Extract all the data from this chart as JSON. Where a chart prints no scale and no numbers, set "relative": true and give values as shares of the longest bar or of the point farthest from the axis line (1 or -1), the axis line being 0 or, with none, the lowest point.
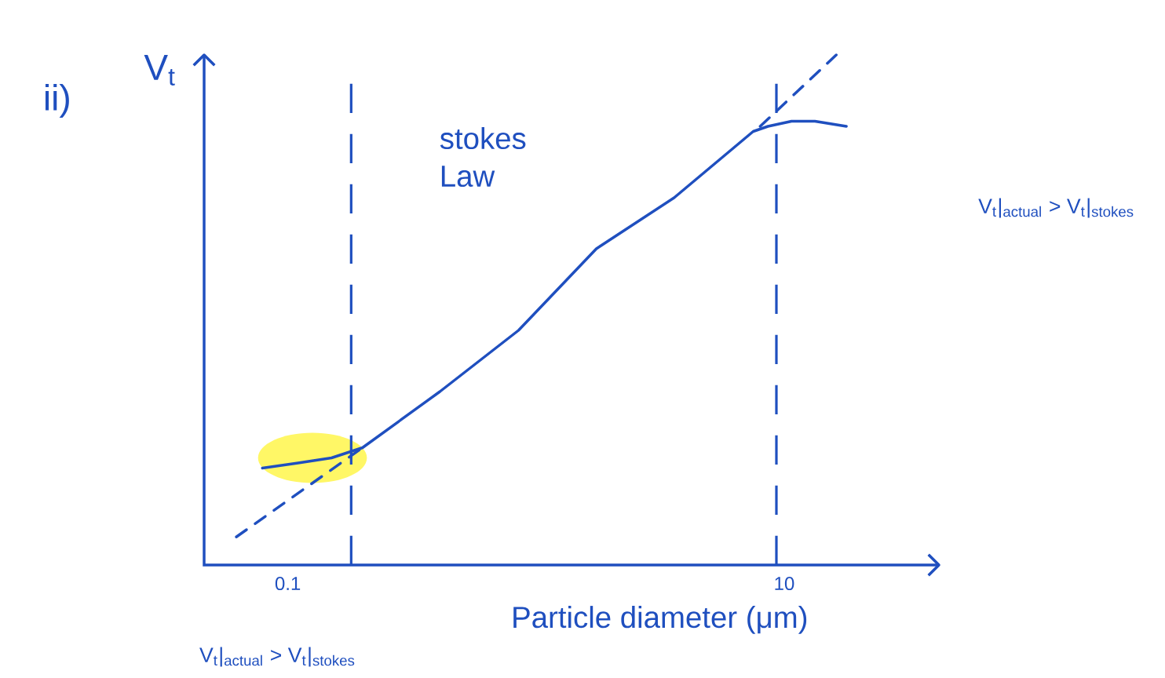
{
  "chart_data": {
    "type": "line",
    "relative": true,
    "log": "x",
    "tick_labels": "x",
    "marker": "none",
    "xlabel": "Particle diameter (μm)",
    "ylabel": "V$_{t}$",
    "xlim": [
      0.046,
      42
    ],
    "xticks": [
      0.1,
      10
    ],
    "series": [
      {
        "color": "#1f4fbf",
        "line_style": "solid",
        "x": [
          0.079,
          0.11,
          0.15,
          0.2,
          0.41,
          0.85,
          1.75,
          3.6,
          7.5,
          8.6,
          10.7,
          13.3,
          17.8
        ],
        "values": [
          0.19,
          0.2,
          0.21,
          0.23,
          0.34,
          0.46,
          0.62,
          0.72,
          0.85,
          0.86,
          0.87,
          0.87,
          0.86
        ]
      },
      {
        "color": "#1f4fbf",
        "line_style": "dashed",
        "x": [
          0.062,
          0.2
        ],
        "values": [
          0.055,
          0.23
        ]
      },
      {
        "color": "#1f4fbf",
        "line_style": "dashed",
        "x": [
          8.0,
          16.2
        ],
        "values": [
          0.86,
          1.0
        ]
      }
    ],
    "ref_lines": [
      {
        "axis": "x",
        "value": 0.18,
        "color": "#1f4fbf",
        "line_style": "dashed"
      },
      {
        "axis": "x",
        "value": 9.3,
        "color": "#1f4fbf",
        "line_style": "dashed"
      }
    ],
    "annotations": [
      "ii)",
      "stokes Law",
      "V$_{t}$|$_{actual}$ > V$_{t}$|$_{stokes}$",
      "V$_{t}$|$_{actual}$ > V$_{t}$|$_{stokes}$"
    ]
  }
}
